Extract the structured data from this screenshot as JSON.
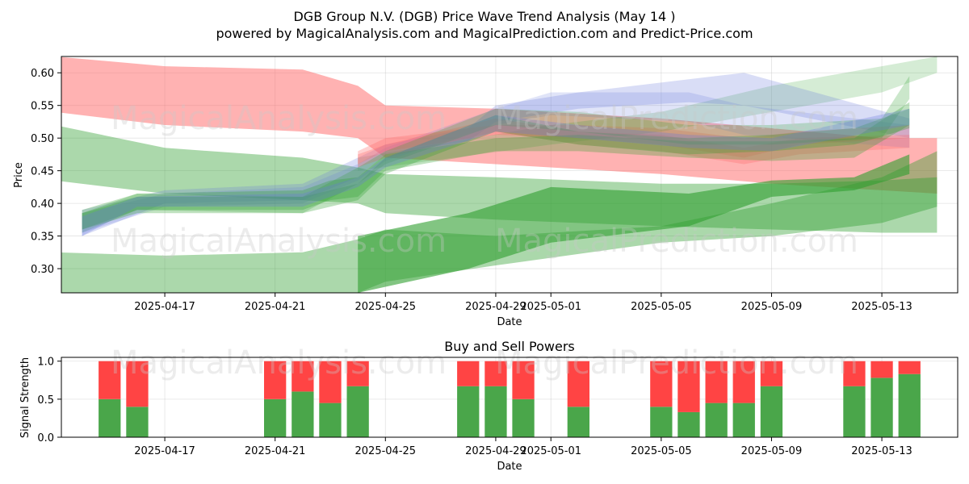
{
  "title_line1": "DGB Group N.V. (DGB) Price Wave Trend Analysis (May 14 )",
  "title_line2": "powered by MagicalAnalysis.com and MagicalPrediction.com and Predict-Price.com",
  "watermarks": [
    "MagicalAnalysis.com",
    "MagicalPrediction.com"
  ],
  "colors": {
    "red": "#ff6666",
    "green": "#2e9e2e",
    "blue": "#6677dd",
    "buy": "#4aa64a",
    "sell": "#ff4444"
  },
  "chart_data": [
    {
      "type": "area",
      "title": "",
      "xlabel": "Date",
      "ylabel": "Price",
      "xlim": [
        "2025-04-13T06:00",
        "2025-05-15T18:00"
      ],
      "ylim": [
        0.263,
        0.625
      ],
      "xticks": [
        "2025-04-17",
        "2025-04-21",
        "2025-04-25",
        "2025-04-29",
        "2025-05-01",
        "2025-05-05",
        "2025-05-09",
        "2025-05-13"
      ],
      "yticks": [
        0.3,
        0.35,
        0.4,
        0.45,
        0.5,
        0.55,
        0.6
      ],
      "grid": true,
      "bands": [
        {
          "color": "red",
          "opacity": 0.5,
          "x": [
            "2025-04-13",
            "2025-04-17",
            "2025-04-22",
            "2025-04-24",
            "2025-04-25",
            "2025-04-29",
            "2025-05-05",
            "2025-05-09",
            "2025-05-13",
            "2025-05-15"
          ],
          "upper": [
            0.625,
            0.61,
            0.605,
            0.58,
            0.55,
            0.545,
            0.53,
            0.515,
            0.5,
            0.5
          ],
          "lower": [
            0.54,
            0.52,
            0.51,
            0.5,
            0.47,
            0.46,
            0.445,
            0.43,
            0.42,
            0.415
          ]
        },
        {
          "color": "green",
          "opacity": 0.4,
          "x": [
            "2025-04-13",
            "2025-04-17",
            "2025-04-22",
            "2025-04-24",
            "2025-04-25",
            "2025-04-29",
            "2025-05-05",
            "2025-05-09",
            "2025-05-13",
            "2025-05-15"
          ],
          "upper": [
            0.52,
            0.485,
            0.47,
            0.455,
            0.445,
            0.44,
            0.43,
            0.43,
            0.435,
            0.44
          ],
          "lower": [
            0.435,
            0.415,
            0.405,
            0.4,
            0.385,
            0.375,
            0.365,
            0.36,
            0.355,
            0.355
          ]
        },
        {
          "color": "green",
          "opacity": 0.4,
          "x": [
            "2025-04-13",
            "2025-04-17",
            "2025-04-22",
            "2025-04-24",
            "2025-04-25",
            "2025-04-29",
            "2025-05-05",
            "2025-05-09",
            "2025-05-13",
            "2025-05-15"
          ],
          "upper": [
            0.325,
            0.32,
            0.325,
            0.345,
            0.36,
            0.35,
            0.365,
            0.4,
            0.44,
            0.48
          ],
          "lower": [
            0.263,
            0.263,
            0.263,
            0.263,
            0.28,
            0.305,
            0.34,
            0.35,
            0.37,
            0.395
          ]
        },
        {
          "color": "green",
          "opacity": 0.6,
          "x": [
            "2025-04-24",
            "2025-04-28",
            "2025-05-01",
            "2025-05-06",
            "2025-05-09",
            "2025-05-12",
            "2025-05-14"
          ],
          "upper": [
            0.35,
            0.385,
            0.425,
            0.415,
            0.435,
            0.44,
            0.475
          ],
          "lower": [
            0.263,
            0.3,
            0.34,
            0.365,
            0.41,
            0.42,
            0.445
          ]
        },
        {
          "color": "green",
          "opacity": 0.2,
          "x": [
            "2025-04-24",
            "2025-05-01",
            "2025-05-05",
            "2025-05-09",
            "2025-05-13",
            "2025-05-15"
          ],
          "upper": [
            0.47,
            0.52,
            0.54,
            0.58,
            0.61,
            0.625
          ],
          "lower": [
            0.45,
            0.49,
            0.51,
            0.54,
            0.57,
            0.6
          ]
        },
        {
          "color": "blue",
          "opacity": 0.25,
          "x": [
            "2025-04-14",
            "2025-04-17",
            "2025-04-22",
            "2025-04-24",
            "2025-04-25",
            "2025-04-28",
            "2025-04-29",
            "2025-05-02",
            "2025-05-06",
            "2025-05-08",
            "2025-05-14"
          ],
          "upper": [
            0.39,
            0.42,
            0.43,
            0.47,
            0.49,
            0.515,
            0.55,
            0.57,
            0.59,
            0.6,
            0.53
          ],
          "lower": [
            0.35,
            0.4,
            0.405,
            0.44,
            0.475,
            0.495,
            0.525,
            0.545,
            0.555,
            0.55,
            0.5
          ]
        },
        {
          "color": "blue",
          "opacity": 0.2,
          "x": [
            "2025-04-14",
            "2025-04-17",
            "2025-04-22",
            "2025-04-24",
            "2025-04-25",
            "2025-04-29",
            "2025-05-01",
            "2025-05-06",
            "2025-05-08",
            "2025-05-14"
          ],
          "upper": [
            0.385,
            0.415,
            0.425,
            0.46,
            0.485,
            0.545,
            0.57,
            0.57,
            0.55,
            0.52
          ],
          "lower": [
            0.355,
            0.395,
            0.4,
            0.435,
            0.465,
            0.52,
            0.535,
            0.525,
            0.505,
            0.485
          ]
        },
        {
          "color": "red",
          "opacity": 0.3,
          "x": [
            "2025-04-24",
            "2025-04-25",
            "2025-04-29",
            "2025-05-02",
            "2025-05-05",
            "2025-05-08",
            "2025-05-10",
            "2025-05-14"
          ],
          "upper": [
            0.48,
            0.5,
            0.52,
            0.52,
            0.515,
            0.5,
            0.51,
            0.52
          ],
          "lower": [
            0.46,
            0.48,
            0.505,
            0.5,
            0.49,
            0.47,
            0.49,
            0.5
          ]
        },
        {
          "color": "red",
          "opacity": 0.3,
          "x": [
            "2025-04-24",
            "2025-04-25",
            "2025-04-29",
            "2025-05-02",
            "2025-05-05",
            "2025-05-08",
            "2025-05-10",
            "2025-05-14"
          ],
          "upper": [
            0.475,
            0.49,
            0.53,
            0.51,
            0.505,
            0.485,
            0.5,
            0.505
          ],
          "lower": [
            0.455,
            0.47,
            0.51,
            0.49,
            0.48,
            0.46,
            0.475,
            0.485
          ]
        },
        {
          "color": "green",
          "opacity": 0.3,
          "x": [
            "2025-04-14",
            "2025-04-16",
            "2025-04-22",
            "2025-04-23",
            "2025-04-24",
            "2025-04-25",
            "2025-04-29",
            "2025-05-02",
            "2025-05-06",
            "2025-05-09",
            "2025-05-12",
            "2025-05-14"
          ],
          "upper": [
            0.39,
            0.415,
            0.42,
            0.435,
            0.44,
            0.475,
            0.5,
            0.505,
            0.495,
            0.495,
            0.5,
            0.555
          ],
          "lower": [
            0.36,
            0.39,
            0.39,
            0.405,
            0.41,
            0.45,
            0.48,
            0.48,
            0.47,
            0.465,
            0.47,
            0.52
          ]
        },
        {
          "color": "green",
          "opacity": 0.3,
          "x": [
            "2025-04-14",
            "2025-04-16",
            "2025-04-22",
            "2025-04-23",
            "2025-04-24",
            "2025-04-25",
            "2025-04-29",
            "2025-05-02",
            "2025-05-06",
            "2025-05-09",
            "2025-05-12",
            "2025-05-14"
          ],
          "upper": [
            0.385,
            0.41,
            0.41,
            0.42,
            0.43,
            0.47,
            0.535,
            0.51,
            0.5,
            0.505,
            0.515,
            0.545
          ],
          "lower": [
            0.36,
            0.385,
            0.385,
            0.395,
            0.405,
            0.445,
            0.51,
            0.49,
            0.475,
            0.48,
            0.49,
            0.515
          ]
        },
        {
          "color": "green",
          "opacity": 0.25,
          "x": [
            "2025-04-14",
            "2025-04-16",
            "2025-04-22",
            "2025-04-24",
            "2025-04-25",
            "2025-04-29",
            "2025-05-02",
            "2025-05-06",
            "2025-05-09",
            "2025-05-13",
            "2025-05-14"
          ],
          "upper": [
            0.385,
            0.415,
            0.41,
            0.455,
            0.48,
            0.545,
            0.54,
            0.52,
            0.52,
            0.53,
            0.595
          ],
          "lower": [
            0.355,
            0.39,
            0.385,
            0.43,
            0.46,
            0.52,
            0.51,
            0.49,
            0.49,
            0.5,
            0.56
          ]
        },
        {
          "color": "blue",
          "opacity": 0.3,
          "x": [
            "2025-04-14",
            "2025-04-16",
            "2025-04-22",
            "2025-04-24",
            "2025-04-25",
            "2025-04-29",
            "2025-05-02",
            "2025-05-06",
            "2025-05-09",
            "2025-05-14"
          ],
          "upper": [
            0.38,
            0.41,
            0.415,
            0.44,
            0.47,
            0.535,
            0.52,
            0.505,
            0.5,
            0.545
          ],
          "lower": [
            0.35,
            0.395,
            0.395,
            0.425,
            0.455,
            0.51,
            0.5,
            0.485,
            0.48,
            0.52
          ]
        }
      ]
    },
    {
      "type": "bar",
      "title": "Buy and Sell Powers",
      "xlabel": "Date",
      "ylabel": "Signal Strength",
      "ylim": [
        0,
        1.05
      ],
      "yticks": [
        0.0,
        0.5,
        1.0
      ],
      "xticks": [
        "2025-04-17",
        "2025-04-21",
        "2025-04-25",
        "2025-04-29",
        "2025-05-01",
        "2025-05-05",
        "2025-05-09",
        "2025-05-13"
      ],
      "xlim": [
        "2025-04-13T06:00",
        "2025-05-15T18:00"
      ],
      "grid": true,
      "dates": [
        "2025-04-15",
        "2025-04-16",
        "2025-04-21",
        "2025-04-22",
        "2025-04-23",
        "2025-04-24",
        "2025-04-28",
        "2025-04-29",
        "2025-04-30",
        "2025-05-02",
        "2025-05-05",
        "2025-05-06",
        "2025-05-07",
        "2025-05-08",
        "2025-05-09",
        "2025-05-12",
        "2025-05-13",
        "2025-05-14"
      ],
      "buy": [
        0.5,
        0.4,
        0.5,
        0.6,
        0.45,
        0.67,
        0.67,
        0.67,
        0.5,
        0.4,
        0.4,
        0.33,
        0.45,
        0.45,
        0.67,
        0.67,
        0.78,
        0.83
      ],
      "sell_total": 1.0
    }
  ]
}
